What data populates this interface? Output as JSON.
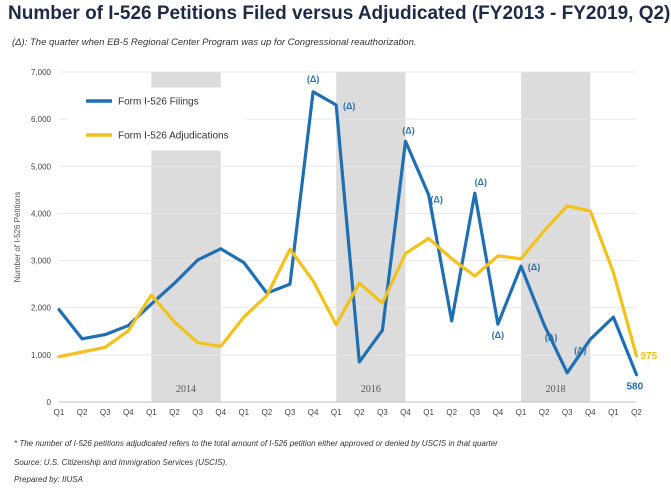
{
  "title": "Number of I-526 Petitions Filed versus Adjudicated (FY2013 - FY2019, Q2)",
  "subtitle": "(Δ): The quarter when EB-5 Regional Center Program was up for Congressional reauthorization.",
  "footnotes": [
    "* The number of I-526 petitions adjudicated refers to the total amount of I-526 petition either approved or denied by USCIS in that quarter",
    "Source: U.S. Citizenship and Immigration Services (USCIS).",
    "Prepared by: IIUSA"
  ],
  "chart_data": {
    "type": "line",
    "ylabel": "Number of I-526 Petitions",
    "xlabel": "",
    "ylim": [
      0,
      7000
    ],
    "yticks": [
      "0",
      "1,000",
      "2,000",
      "3,000",
      "4,000",
      "5,000",
      "6,000",
      "7,000"
    ],
    "categories": [
      "Q1",
      "Q2",
      "Q3",
      "Q4",
      "Q1",
      "Q2",
      "Q3",
      "Q4",
      "Q1",
      "Q2",
      "Q3",
      "Q4",
      "Q1",
      "Q2",
      "Q3",
      "Q4",
      "Q1",
      "Q2",
      "Q3",
      "Q4",
      "Q1",
      "Q2",
      "Q3",
      "Q4",
      "Q1",
      "Q2"
    ],
    "year_bands": [
      {
        "label": "2014",
        "from": 4,
        "to": 7
      },
      {
        "label": "2016",
        "from": 12,
        "to": 15
      },
      {
        "label": "2018",
        "from": 20,
        "to": 23
      }
    ],
    "series": [
      {
        "name": "Form I-526 Filings",
        "color": "#1f6fb2",
        "values": [
          1960,
          1340,
          1430,
          1620,
          2080,
          2520,
          3010,
          3250,
          2960,
          2310,
          2500,
          6580,
          6300,
          850,
          1520,
          5530,
          4400,
          1720,
          4430,
          1650,
          2880,
          1640,
          620,
          1330,
          1800,
          580
        ]
      },
      {
        "name": "Form I-526 Adjudications",
        "color": "#f2c21b",
        "values": [
          960,
          1060,
          1160,
          1510,
          2270,
          1700,
          1260,
          1180,
          1800,
          2260,
          3240,
          2570,
          1640,
          2520,
          2100,
          3150,
          3470,
          3040,
          2670,
          3100,
          3040,
          3630,
          4160,
          4050,
          2750,
          975
        ]
      }
    ],
    "annotations": [
      {
        "index": 11,
        "text": "(Δ)"
      },
      {
        "index": 12,
        "text": "(Δ)"
      },
      {
        "index": 15,
        "text": "(Δ)"
      },
      {
        "index": 16,
        "text": "(Δ)"
      },
      {
        "index": 18,
        "text": "(Δ)"
      },
      {
        "index": 19,
        "text": "(Δ)"
      },
      {
        "index": 20,
        "text": "(Δ)"
      },
      {
        "index": 21,
        "text": "(Δ)"
      },
      {
        "index": 23,
        "text": "(Δ)"
      }
    ],
    "end_labels": [
      {
        "series": 1,
        "text": "975"
      },
      {
        "series": 0,
        "text": "580"
      }
    ],
    "legend": "top-left",
    "grid": true
  }
}
